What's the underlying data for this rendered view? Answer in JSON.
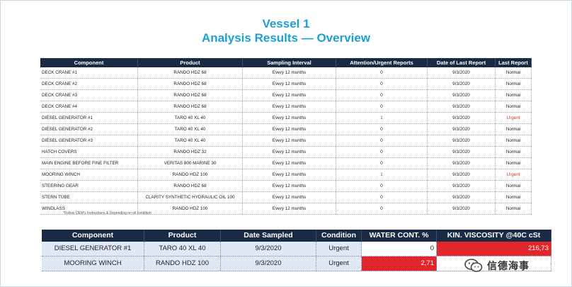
{
  "title": "Vessel 1",
  "subtitle": "Analysis Results — Overview",
  "main_table": {
    "headers": [
      "Component",
      "Product",
      "Sampling Interval",
      "Attention/Urgent Reports",
      "Date of Last Report",
      "Last Report"
    ],
    "rows": [
      [
        "DECK CRANE #1",
        "RANDO HDZ 68",
        "Every 12 months",
        "0",
        "9/3/2020",
        "Normal"
      ],
      [
        "DECK CRANE #2",
        "RANDO HDZ 68",
        "Every 12 months",
        "0",
        "9/3/2020",
        "Normal"
      ],
      [
        "DECK CRANE #3",
        "RANDO HDZ 68",
        "Every 12 months",
        "0",
        "9/3/2020",
        "Normal"
      ],
      [
        "DECK CRANE #4",
        "RANDO HDZ 68",
        "Every 12 months",
        "0",
        "9/3/2020",
        "Normal"
      ],
      [
        "DIESEL GENERATOR #1",
        "TARO 40 XL 40",
        "Every 12 months",
        "1",
        "9/3/2020",
        "Urgent"
      ],
      [
        "DIESEL GENERATOR #2",
        "TARO 40 XL 40",
        "Every 12 months",
        "0",
        "9/3/2020",
        "Normal"
      ],
      [
        "DIESEL GENERATOR #3",
        "TARO 40 XL 40",
        "Every 12 months",
        "0",
        "9/3/2020",
        "Normal"
      ],
      [
        "HATCH COVERS",
        "RANDO HDZ 32",
        "Every 12 months",
        "0",
        "9/3/2020",
        "Normal"
      ],
      [
        "MAIN ENGINE BEFORE FINE FILTER",
        "VERITAS 800 MARINE 30",
        "Every 12 months",
        "0",
        "9/3/2020",
        "Normal"
      ],
      [
        "MOORING WINCH",
        "RANDO HDZ 100",
        "Every 12 months",
        "1",
        "9/3/2020",
        "Urgent"
      ],
      [
        "STEERING GEAR",
        "RANDO HDZ 68",
        "Every 12 months",
        "0",
        "9/3/2020",
        "Normal"
      ],
      [
        "STERN TUBE",
        "CLARITY SYNTHETIC HYDRAULIC OIL 100",
        "Every 12 months",
        "0",
        "9/3/2020",
        "Normal"
      ],
      [
        "WINDLASS",
        "RANDO HDZ 100",
        "Every 12 months",
        "0",
        "9/3/2020",
        "Normal"
      ]
    ]
  },
  "footnote": "*Follow OEM's Instructions & Depending on oil condition",
  "summary_table": {
    "headers": [
      "Component",
      "Product",
      "Date Sampled",
      "Condition",
      "WATER CONT. %",
      "KIN. VISCOSITY @40C cSt"
    ],
    "rows": [
      [
        "DIESEL GENERATOR #1",
        "TARO 40 XL 40",
        "9/3/2020",
        "Urgent",
        "0",
        "216,73"
      ],
      [
        "MOORING WINCH",
        "RANDO HDZ 100",
        "9/3/2020",
        "Urgent",
        "2,71",
        ""
      ]
    ]
  },
  "highlight_colors": {
    "urgent_text": "#d0312d",
    "alert_cell": "#e3262c"
  },
  "watermark": {
    "text": "信德海事",
    "icon": "wechat-icon"
  }
}
